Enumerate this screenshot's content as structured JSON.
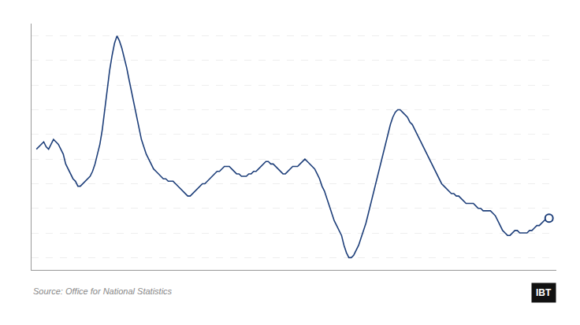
{
  "chart_data": {
    "type": "line",
    "x": [
      0,
      1,
      2,
      3,
      4,
      5,
      6,
      7,
      8,
      9,
      10,
      11,
      12,
      13,
      14,
      15,
      16,
      17,
      18,
      19,
      20,
      21,
      22,
      23,
      24,
      25,
      26,
      27,
      28,
      29,
      30,
      31,
      32,
      33,
      34,
      35,
      36,
      37,
      38,
      39,
      40,
      41,
      42,
      43,
      44,
      45,
      46,
      47,
      48,
      49,
      50,
      51,
      52,
      53,
      54,
      55,
      56,
      57,
      58,
      59,
      60,
      61,
      62,
      63,
      64,
      65,
      66,
      67,
      68,
      69,
      70,
      71,
      72,
      73,
      74,
      75,
      76,
      77,
      78,
      79,
      80,
      81,
      82,
      83,
      84,
      85,
      86,
      87,
      88,
      89,
      90,
      91,
      92,
      93,
      94,
      95,
      96,
      97,
      98,
      99,
      100,
      101,
      102,
      103,
      104,
      105,
      106,
      107,
      108,
      109,
      110,
      111,
      112,
      113,
      114,
      115,
      116,
      117,
      118,
      119,
      120,
      121,
      122,
      123,
      124,
      125,
      126,
      127,
      128,
      129,
      130,
      131,
      132,
      133,
      134,
      135,
      136,
      137,
      138,
      139,
      140,
      141,
      142,
      143,
      144,
      145,
      146,
      147,
      148,
      149,
      150,
      151,
      152,
      153,
      154,
      155,
      156,
      157,
      158,
      159,
      160,
      161,
      162,
      163,
      164,
      165,
      166,
      167,
      168,
      169,
      170,
      171,
      172,
      173,
      174,
      175,
      176,
      177,
      178,
      179,
      180,
      181,
      182,
      183,
      184,
      185,
      186,
      187,
      188,
      189,
      190,
      191,
      192,
      193,
      194,
      195,
      196,
      197,
      198,
      199,
      200,
      201,
      202,
      203,
      204,
      205,
      206,
      207,
      208,
      209,
      210
    ],
    "values": [
      3.4,
      3.5,
      3.6,
      3.7,
      3.5,
      3.4,
      3.6,
      3.8,
      3.7,
      3.6,
      3.4,
      3.2,
      2.8,
      2.6,
      2.4,
      2.2,
      2.1,
      1.9,
      1.9,
      2.0,
      2.1,
      2.2,
      2.3,
      2.5,
      2.8,
      3.2,
      3.6,
      4.2,
      5.0,
      5.8,
      6.6,
      7.2,
      7.7,
      8.0,
      7.8,
      7.5,
      7.1,
      6.7,
      6.2,
      5.7,
      5.2,
      4.7,
      4.2,
      3.8,
      3.5,
      3.2,
      3.0,
      2.8,
      2.6,
      2.5,
      2.4,
      2.3,
      2.2,
      2.2,
      2.1,
      2.1,
      2.1,
      2.0,
      1.9,
      1.8,
      1.7,
      1.6,
      1.5,
      1.5,
      1.6,
      1.7,
      1.8,
      1.9,
      2.0,
      2.0,
      2.1,
      2.2,
      2.3,
      2.4,
      2.5,
      2.5,
      2.6,
      2.7,
      2.7,
      2.7,
      2.6,
      2.5,
      2.4,
      2.4,
      2.3,
      2.3,
      2.3,
      2.4,
      2.4,
      2.5,
      2.5,
      2.6,
      2.7,
      2.8,
      2.9,
      2.9,
      2.8,
      2.8,
      2.7,
      2.6,
      2.5,
      2.4,
      2.4,
      2.5,
      2.6,
      2.7,
      2.7,
      2.7,
      2.8,
      2.9,
      3.0,
      2.9,
      2.8,
      2.7,
      2.6,
      2.4,
      2.2,
      1.9,
      1.7,
      1.4,
      1.1,
      0.8,
      0.5,
      0.3,
      0.1,
      -0.1,
      -0.5,
      -0.8,
      -1.0,
      -1.0,
      -0.9,
      -0.7,
      -0.5,
      -0.2,
      0.1,
      0.4,
      0.8,
      1.2,
      1.6,
      2.0,
      2.4,
      2.8,
      3.2,
      3.6,
      4.0,
      4.4,
      4.7,
      4.9,
      5.0,
      5.0,
      4.9,
      4.8,
      4.7,
      4.5,
      4.4,
      4.2,
      4.0,
      3.8,
      3.6,
      3.4,
      3.2,
      3.0,
      2.8,
      2.6,
      2.4,
      2.2,
      2.0,
      1.9,
      1.8,
      1.7,
      1.6,
      1.6,
      1.5,
      1.5,
      1.4,
      1.3,
      1.2,
      1.2,
      1.2,
      1.2,
      1.1,
      1.0,
      1.0,
      0.9,
      0.9,
      0.9,
      0.9,
      0.8,
      0.7,
      0.5,
      0.3,
      0.1,
      0.0,
      -0.1,
      -0.1,
      0.0,
      0.1,
      0.1,
      0.0,
      0.0,
      0.0,
      0.0,
      0.1,
      0.1,
      0.2,
      0.3,
      0.3,
      0.4,
      0.5,
      0.6,
      0.6
    ],
    "color": "#1e3f7a",
    "xlim": [
      -2,
      213
    ],
    "ylim": [
      -1.5,
      8.5
    ],
    "yticks": [
      -1.0,
      0.0,
      1.0,
      2.0,
      3.0,
      4.0,
      5.0,
      6.0,
      7.0,
      8.0
    ],
    "grid": true,
    "tick_labels": false,
    "annotations": [
      "Source: Office for National Statistics",
      "IBT"
    ]
  }
}
